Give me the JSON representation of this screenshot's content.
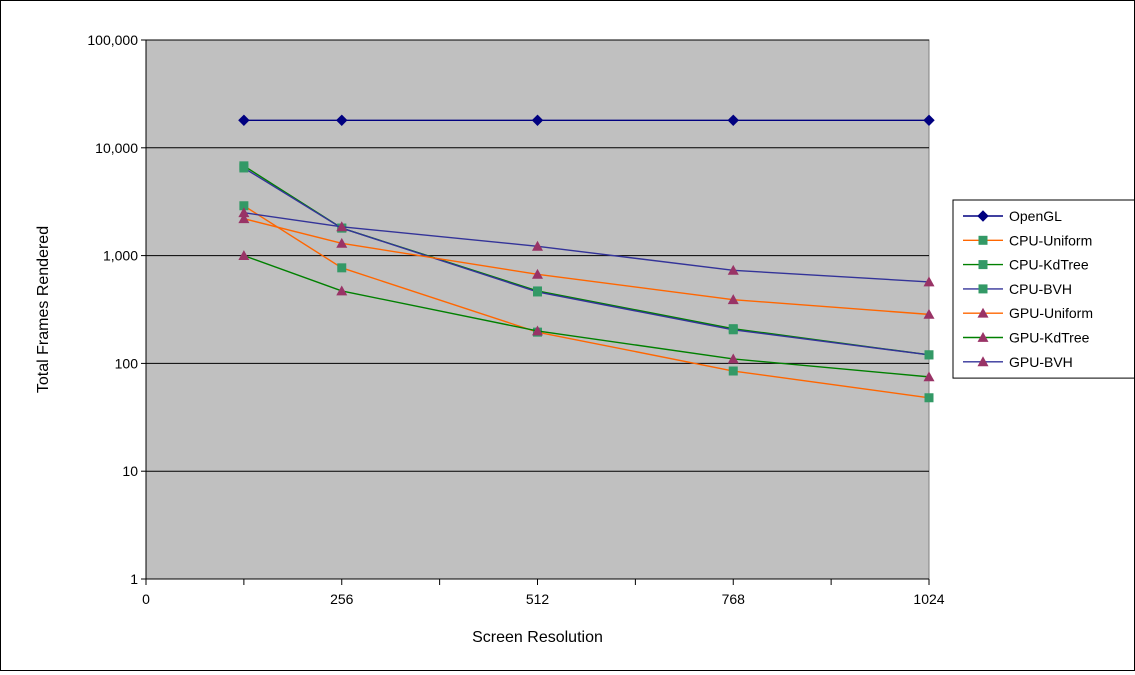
{
  "chart_data": {
    "type": "line",
    "title": "",
    "xlabel": "Screen Resolution",
    "ylabel": "Total Frames Rendered",
    "y_scale": "log",
    "ylim": [
      1,
      100000
    ],
    "xlim": [
      0,
      1024
    ],
    "x_ticks": [
      0,
      256,
      512,
      768,
      1024
    ],
    "x_tick_labels": [
      "0",
      "256",
      "512",
      "768",
      "1024"
    ],
    "y_ticks": [
      1,
      10,
      100,
      1000,
      10000,
      100000
    ],
    "y_tick_labels": [
      "1",
      "10",
      "100",
      "1,000",
      "10,000",
      "100,000"
    ],
    "grid": "horizontal",
    "plot_background": "#c0c0c0",
    "legend_position": "right",
    "x": [
      128,
      256,
      512,
      768,
      1024
    ],
    "series": [
      {
        "name": "OpenGL",
        "color": "#000080",
        "marker": "diamond",
        "values": [
          18000,
          18000,
          18000,
          18000,
          18000
        ]
      },
      {
        "name": "CPU-Uniform",
        "color": "#ff6600",
        "marker": "square",
        "values": [
          2900,
          770,
          195,
          85,
          48
        ]
      },
      {
        "name": "CPU-KdTree",
        "color": "#008000",
        "marker": "square",
        "values": [
          6800,
          1800,
          470,
          210,
          120
        ]
      },
      {
        "name": "CPU-BVH",
        "color": "#333399",
        "marker": "square",
        "values": [
          6500,
          1800,
          460,
          205,
          120
        ]
      },
      {
        "name": "GPU-Uniform",
        "color": "#ff6600",
        "marker": "triangle",
        "values": [
          2200,
          1300,
          670,
          390,
          285
        ]
      },
      {
        "name": "GPU-KdTree",
        "color": "#008000",
        "marker": "triangle",
        "values": [
          1000,
          470,
          200,
          110,
          75
        ]
      },
      {
        "name": "GPU-BVH",
        "color": "#333399",
        "marker": "triangle",
        "values": [
          2500,
          1850,
          1220,
          730,
          570
        ]
      }
    ],
    "marker_fill": {
      "diamond": "#000080",
      "square": "#339966",
      "triangle": "#993366"
    }
  }
}
